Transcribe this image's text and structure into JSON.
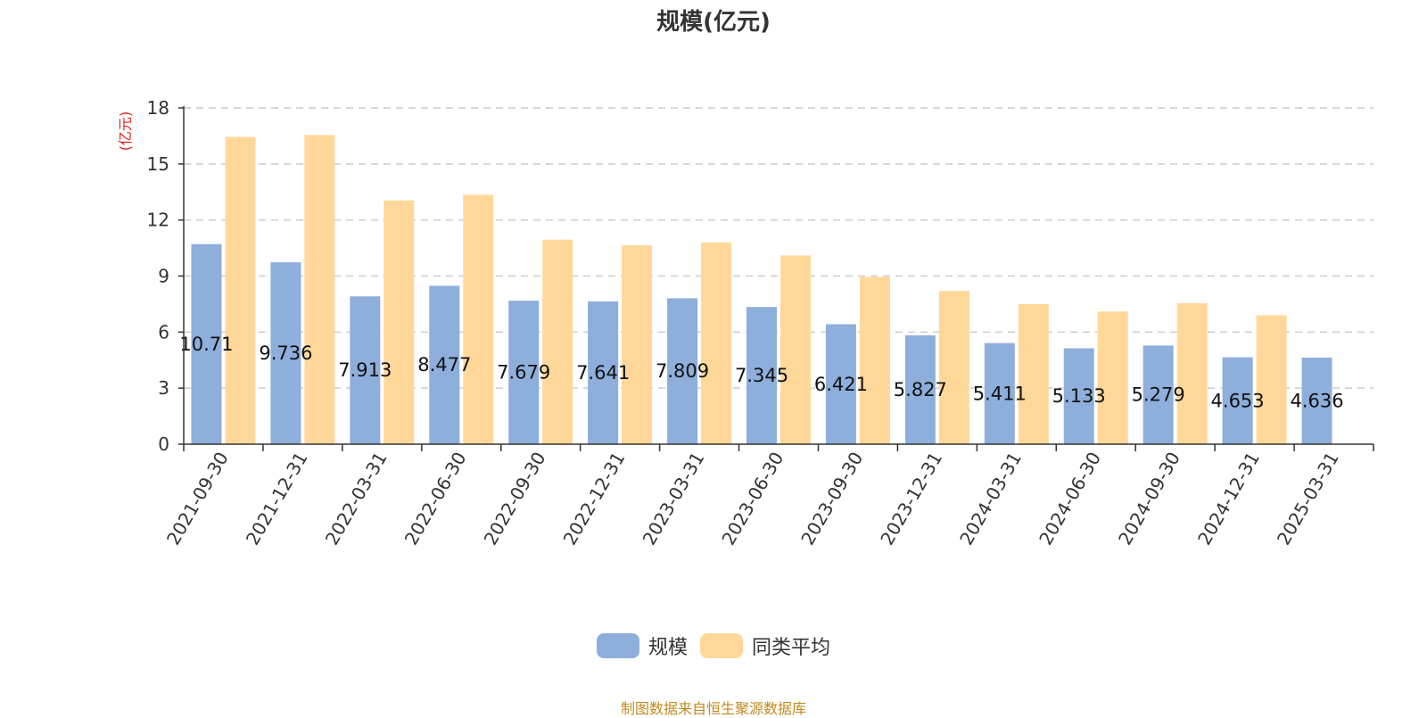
{
  "chart_data": {
    "type": "bar",
    "title": "规模(亿元)",
    "ylabel": "(亿元)",
    "xlabel": "",
    "ylim": [
      0,
      18
    ],
    "yticks": [
      0,
      3,
      6,
      9,
      12,
      15,
      18
    ],
    "grid": true,
    "legend_position": "bottom-center",
    "categories": [
      "2021-09-30",
      "2021-12-31",
      "2022-03-31",
      "2022-06-30",
      "2022-09-30",
      "2022-12-31",
      "2023-03-31",
      "2023-06-30",
      "2023-09-30",
      "2023-12-31",
      "2024-03-31",
      "2024-06-30",
      "2024-09-30",
      "2024-12-31",
      "2025-03-31"
    ],
    "series": [
      {
        "name": "规模",
        "color": "#8eaedb",
        "values": [
          10.71,
          9.736,
          7.913,
          8.477,
          7.679,
          7.641,
          7.809,
          7.345,
          6.421,
          5.827,
          5.411,
          5.133,
          5.279,
          4.653,
          4.636
        ],
        "labels": [
          "10.71",
          "9.736",
          "7.913",
          "8.477",
          "7.679",
          "7.641",
          "7.809",
          "7.345",
          "6.421",
          "5.827",
          "5.411",
          "5.133",
          "5.279",
          "4.653",
          "4.636"
        ]
      },
      {
        "name": "同类平均",
        "color": "#ffd899",
        "values": [
          16.45,
          16.55,
          13.05,
          13.35,
          10.95,
          10.65,
          10.8,
          10.1,
          8.95,
          8.2,
          7.5,
          7.1,
          7.55,
          6.9,
          null
        ]
      }
    ]
  },
  "footer": {
    "source": "制图数据来自恒生聚源数据库"
  }
}
